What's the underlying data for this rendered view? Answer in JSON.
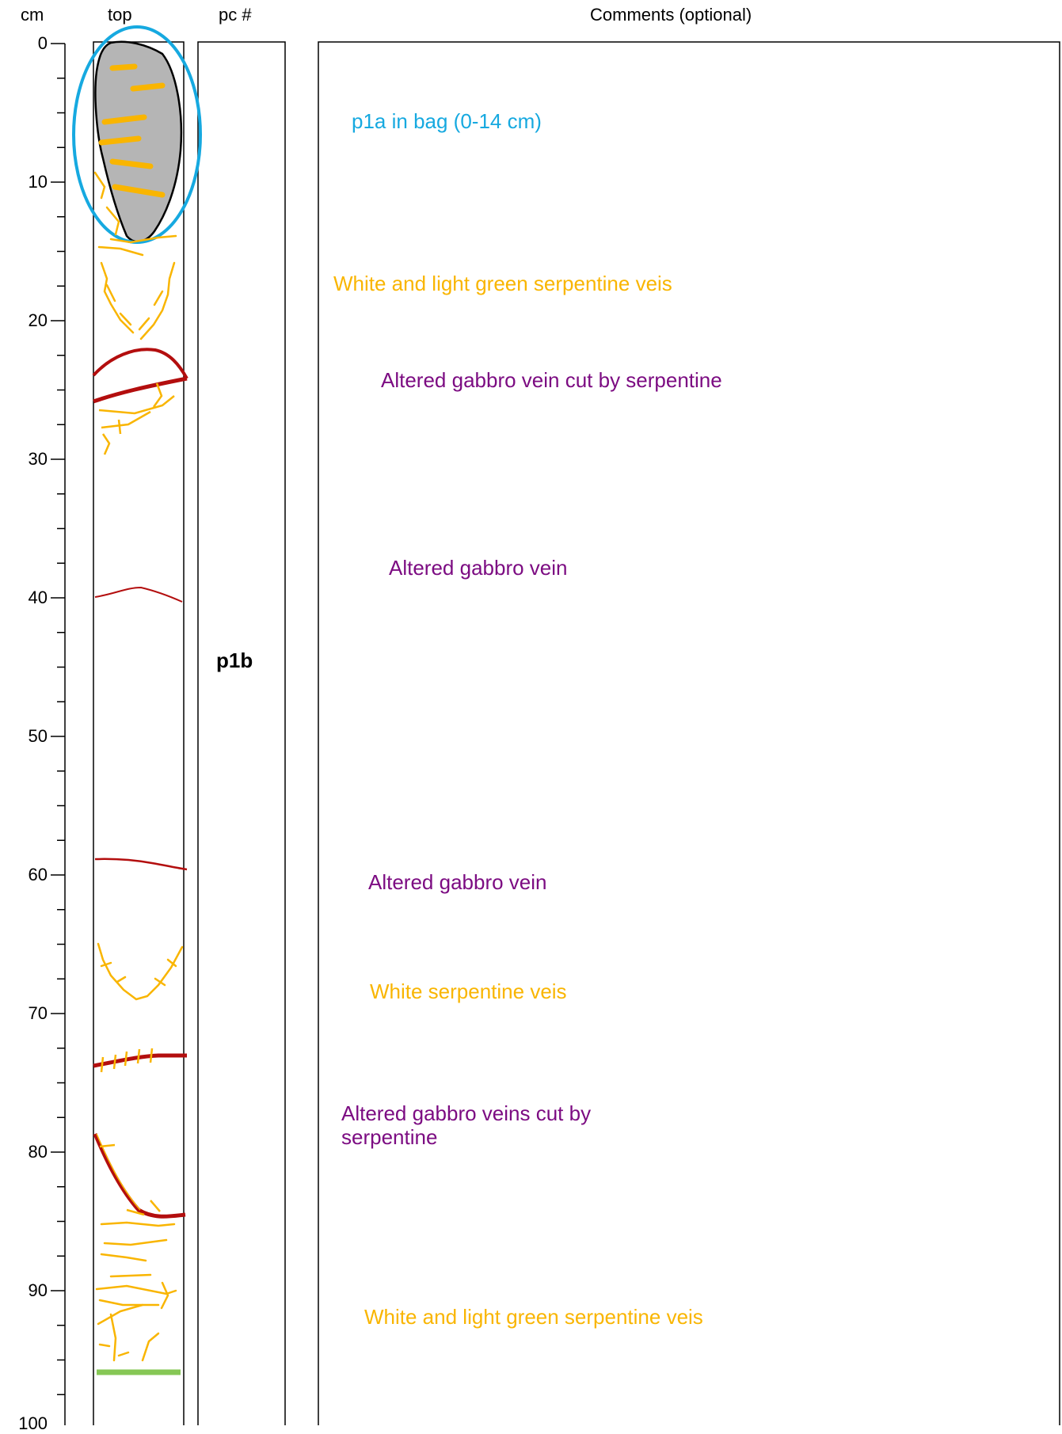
{
  "headers": {
    "depth_unit": "cm",
    "column_top": "top",
    "column_pc": "pc #",
    "column_comments": "Comments (optional)"
  },
  "depth_scale": {
    "min": 0,
    "max": 100,
    "major_step": 10,
    "minor_step": 2.5,
    "labels": [
      "0",
      "10",
      "20",
      "30",
      "40",
      "50",
      "60",
      "70",
      "80",
      "90",
      "100"
    ]
  },
  "pieces": [
    {
      "label": "p1b",
      "depth_cm": 44.5
    }
  ],
  "comments": [
    {
      "text": "p1a in bag (0-14 cm)",
      "color": "#16a9e0",
      "depth_cm": 5.6
    },
    {
      "text": "White and light green serpentine veis",
      "color": "#f9b500",
      "depth_cm": 17.3
    },
    {
      "text": "Altered gabbro vein cut by serpentine",
      "color": "#7c0c82",
      "depth_cm": 24.3
    },
    {
      "text": "Altered gabbro vein",
      "color": "#7c0c82",
      "depth_cm": 37.8
    },
    {
      "text": "Altered gabbro vein",
      "color": "#7c0c82",
      "depth_cm": 60.5
    },
    {
      "text": "White serpentine veis",
      "color": "#f9b500",
      "depth_cm": 68.4
    },
    {
      "text": "Altered gabbro veins cut by serpentine",
      "color": "#7c0c82",
      "depth_cm": 77.2
    },
    {
      "text": "White and light green serpentine veis",
      "color": "#f9b500",
      "depth_cm": 91.9
    }
  ],
  "colors": {
    "serpentine": "#f9b500",
    "gabbro": "#b30e0e",
    "bagged_piece": "#b5b5b5",
    "bag_outline": "#16a9e0",
    "green_line": "#86c755"
  }
}
